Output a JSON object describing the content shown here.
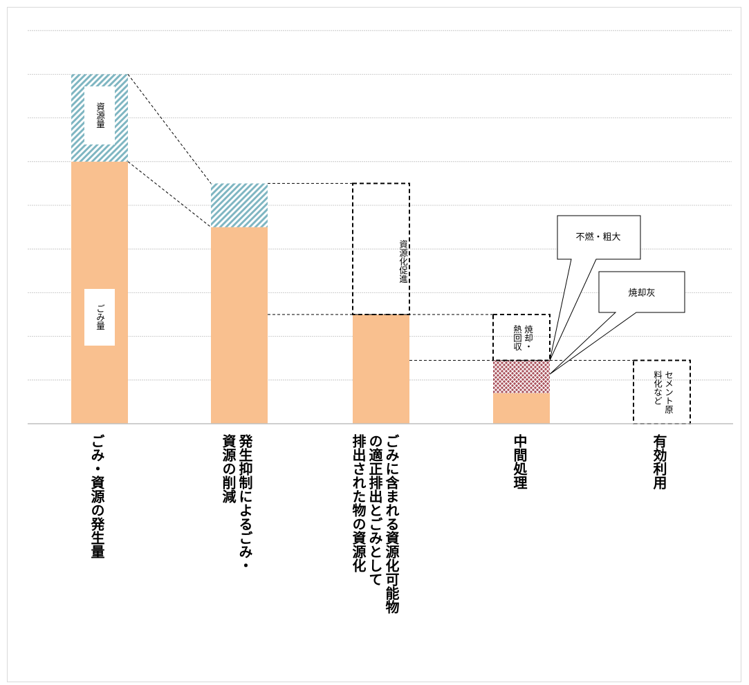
{
  "chart_data": {
    "type": "bar",
    "categories": [
      "ごみ・資源の発生量",
      "発生抑制によるごみ・\n資源の削減",
      "ごみに含まれる資源化可能物\nの適正排出とごみとして\n排出された物の資源化",
      "中間処理",
      "有効利用"
    ],
    "series": [
      {
        "name": "ごみ量",
        "values": [
          6,
          4.5,
          2.5,
          0.7,
          0
        ]
      },
      {
        "name": "資源量",
        "values": [
          2,
          1,
          0,
          0,
          0
        ]
      },
      {
        "name": "",
        "values": [
          0,
          0,
          0,
          0.75,
          0
        ]
      }
    ],
    "ylim": [
      0,
      9
    ],
    "grid": true
  },
  "labels": {
    "gomi_ryo": "ごみ量",
    "shigen_ryo": "資源量",
    "shigenka_sokushin": "資源化促進",
    "shokyaku_netsu": "焼却・\n熱回収",
    "cement": "セメント原\n料化など",
    "funen_sodai": "不燃・粗大",
    "shokyakubai": "焼却灰"
  },
  "colors": {
    "gomi": "#f9c08f",
    "shigen_hatch": "#7fb6c2",
    "ash_hatch": "#a8505a",
    "grid": "#bfbfbf"
  }
}
